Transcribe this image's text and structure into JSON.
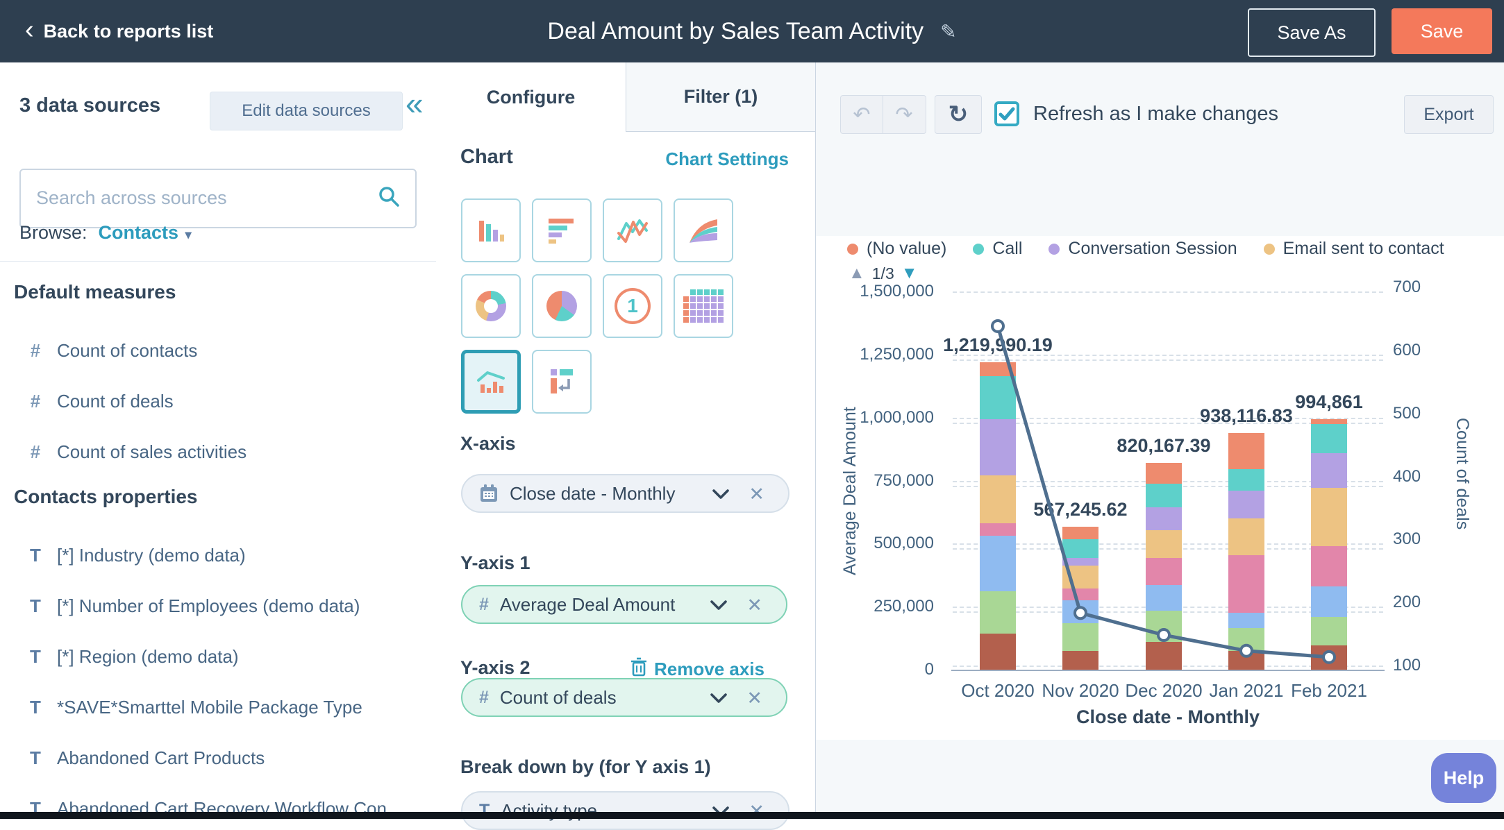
{
  "topbar": {
    "back_label": "Back to reports list",
    "title": "Deal Amount by Sales Team Activity",
    "save_as_label": "Save As",
    "save_label": "Save"
  },
  "colors": {
    "topbar_bg": "#2e3f50",
    "accent_orange": "#f4795b",
    "link_teal": "#2d9cbd",
    "text_navy": "#33475b",
    "panel_gray": "#f5f8fa",
    "help_purple": "#7583da"
  },
  "sidebar": {
    "sources_count_label": "3 data sources",
    "edit_button_label": "Edit data sources",
    "search_placeholder": "Search across sources",
    "browse_label": "Browse:",
    "browse_value": "Contacts",
    "sections": [
      {
        "heading": "Default measures",
        "items": [
          {
            "icon": "#",
            "label": "Count of contacts"
          },
          {
            "icon": "#",
            "label": "Count of deals"
          },
          {
            "icon": "#",
            "label": "Count of sales activities"
          }
        ]
      },
      {
        "heading": "Contacts properties",
        "items": [
          {
            "icon": "T",
            "label": "[*] Industry (demo data)"
          },
          {
            "icon": "T",
            "label": "[*] Number of Employees (demo data)"
          },
          {
            "icon": "T",
            "label": "[*] Region (demo data)"
          },
          {
            "icon": "T",
            "label": "*SAVE*Smarttel Mobile Package Type"
          },
          {
            "icon": "T",
            "label": "Abandoned Cart Products"
          },
          {
            "icon": "T",
            "label": "Abandoned Cart Recovery Workflow Con..."
          }
        ]
      }
    ]
  },
  "config_panel": {
    "tabs": [
      {
        "label": "Configure",
        "active": true
      },
      {
        "label": "Filter (1)",
        "active": false
      }
    ],
    "chart_heading": "Chart",
    "chart_settings_label": "Chart Settings",
    "chart_types": [
      "column",
      "bar",
      "line",
      "area",
      "donut",
      "pie",
      "single-value",
      "table",
      "combo",
      "pivot"
    ],
    "selected_chart_type": "combo",
    "x_axis": {
      "heading": "X-axis",
      "value": "Close date - Monthly",
      "icon": "calendar-icon"
    },
    "y_axis_1": {
      "heading": "Y-axis 1",
      "value": "Average Deal Amount",
      "icon": "number-icon"
    },
    "y_axis_2": {
      "heading": "Y-axis 2",
      "remove_label": "Remove axis",
      "value": "Count of deals",
      "icon": "number-icon"
    },
    "break_down": {
      "heading": "Break down by (for Y axis 1)",
      "value": "Activity type",
      "icon": "text-icon"
    }
  },
  "chart_toolbar": {
    "refresh_checkbox_label": "Refresh as I make changes",
    "checkbox_checked": true,
    "export_label": "Export"
  },
  "chart_data": {
    "type": "combo: stacked column + line",
    "title": "",
    "x_label": "Close date - Monthly",
    "categories": [
      "Oct 2020",
      "Nov 2020",
      "Dec 2020",
      "Jan 2021",
      "Feb 2021"
    ],
    "legend": [
      {
        "label": "(No value)",
        "color": "#ee8b6e"
      },
      {
        "label": "Call",
        "color": "#5ed0ca"
      },
      {
        "label": "Conversation Session",
        "color": "#b3a1e3"
      },
      {
        "label": "Email sent to contact",
        "color": "#edc383"
      }
    ],
    "legend_pagination": "1/3",
    "y1": {
      "label": "Average Deal Amount",
      "min": 0,
      "max": 1500000,
      "ticks": [
        "0",
        "250,000",
        "500,000",
        "750,000",
        "1,000,000",
        "1,250,000",
        "1,500,000"
      ]
    },
    "y2": {
      "label": "Count of deals",
      "min": 100,
      "max": 700,
      "ticks": [
        "100",
        "200",
        "300",
        "400",
        "500",
        "600",
        "700"
      ]
    },
    "bar_totals": [
      "1,219,990.19",
      "567,245.62",
      "820,167.39",
      "938,116.83",
      "994,861"
    ],
    "segment_colors_bottom_to_top": [
      "#b3604d",
      "#a9d795",
      "#8fbbf0",
      "#e286aa",
      "#edc383",
      "#b3a1e3",
      "#5ed0ca",
      "#ee8b6e"
    ],
    "bars": [
      {
        "category": "Oct 2020",
        "total": 1219990.19,
        "segments": [
          143000,
          168000,
          219000,
          52000,
          190000,
          223000,
          170000,
          54990.19
        ]
      },
      {
        "category": "Nov 2020",
        "total": 567245.62,
        "segments": [
          74000,
          109245.62,
          93000,
          47000,
          91000,
          30000,
          74000,
          49000
        ]
      },
      {
        "category": "Dec 2020",
        "total": 820167.39,
        "segments": [
          110000,
          124000,
          102000,
          108167.39,
          110000,
          91000,
          93000,
          82000
        ]
      },
      {
        "category": "Jan 2021",
        "total": 938116.83,
        "segments": [
          75000,
          90000,
          60000,
          230000,
          145000,
          110000,
          85000,
          143116.83
        ]
      },
      {
        "category": "Feb 2021",
        "total": 994861,
        "segments": [
          95000,
          115000,
          120000,
          160000,
          230000,
          140000,
          115000,
          19861
        ]
      }
    ],
    "line": {
      "name": "Count of deals",
      "color": "#4f6f8f",
      "values": [
        645,
        190,
        155,
        130,
        120
      ]
    },
    "grid": "dashed, both axes"
  },
  "help_button_label": "Help"
}
